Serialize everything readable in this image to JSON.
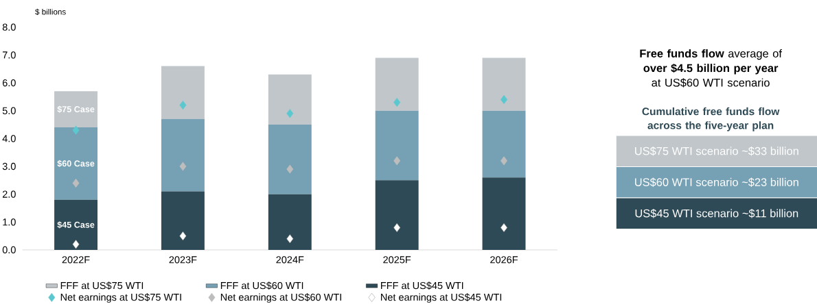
{
  "chart_data": {
    "type": "bar",
    "stacked": true,
    "ylabel": "$ billions",
    "categories": [
      "2022F",
      "2023F",
      "2024F",
      "2025F",
      "2026F"
    ],
    "series": [
      {
        "name": "FFF at US$45 WTI",
        "color": "#2e4a56",
        "values": [
          1.8,
          2.1,
          2.0,
          2.5,
          2.6
        ]
      },
      {
        "name": "FFF at US$60 WTI",
        "color": "#76a0b3",
        "values": [
          2.6,
          2.6,
          2.5,
          2.5,
          2.4
        ]
      },
      {
        "name": "FFF at US$75 WTI",
        "color": "#c0c6c9",
        "values": [
          1.3,
          1.9,
          1.8,
          1.9,
          1.9
        ]
      },
      {
        "name": "Net earnings at US$75 WTI",
        "type": "scatter",
        "color": "#5bc8cf",
        "values": [
          4.3,
          5.2,
          4.9,
          5.3,
          5.4
        ]
      },
      {
        "name": "Net earnings at US$60 WTI",
        "type": "scatter",
        "color": "#bdbdbd",
        "values": [
          2.4,
          3.0,
          2.9,
          3.2,
          3.2
        ]
      },
      {
        "name": "Net earnings at US$45 WTI",
        "type": "scatter",
        "color": "#ffffff",
        "values": [
          0.2,
          0.5,
          0.4,
          0.8,
          0.8
        ]
      }
    ],
    "marker": "diamond",
    "ylim": [
      0,
      8
    ],
    "yticks": [
      {
        "value": 0,
        "label": "0.0"
      },
      {
        "value": 1,
        "label": "1.0"
      },
      {
        "value": 2,
        "label": "2.0"
      },
      {
        "value": 3,
        "label": "3.0"
      },
      {
        "value": 4,
        "label": "4.0"
      },
      {
        "value": 5,
        "label": "5.0"
      },
      {
        "value": 6,
        "label": "6.0"
      },
      {
        "value": 7,
        "label": "7.0"
      },
      {
        "value": 8,
        "label": "8.0"
      }
    ],
    "legend": "bottom",
    "annotations": [
      "**Free funds flow** average of **over $4.5 billion per year** at US$60 WTI scenario",
      "Cumulative free funds flow across the five-year plan",
      "US$75 WTI scenario ~$33 billion",
      "US$60 WTI scenario ~$23 billion",
      "US$45 WTI scenario ~$11 billion",
      "$75 Case",
      "$60 Case",
      "$45 Case"
    ]
  }
}
